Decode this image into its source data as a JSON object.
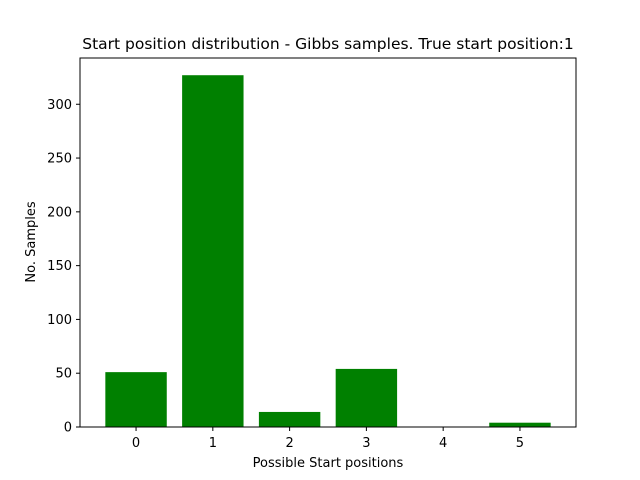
{
  "chart_data": {
    "type": "bar",
    "title": "Start position distribution - Gibbs samples. True start position:1",
    "xlabel": "Possible Start positions",
    "ylabel": "No. Samples",
    "categories": [
      "0",
      "1",
      "2",
      "3",
      "4",
      "5"
    ],
    "values": [
      51,
      327,
      14,
      54,
      0,
      4
    ],
    "ylim": [
      0,
      343
    ],
    "yticks": [
      0,
      50,
      100,
      150,
      200,
      250,
      300
    ],
    "bar_color": "#008000",
    "grid": false,
    "legend": "none"
  }
}
